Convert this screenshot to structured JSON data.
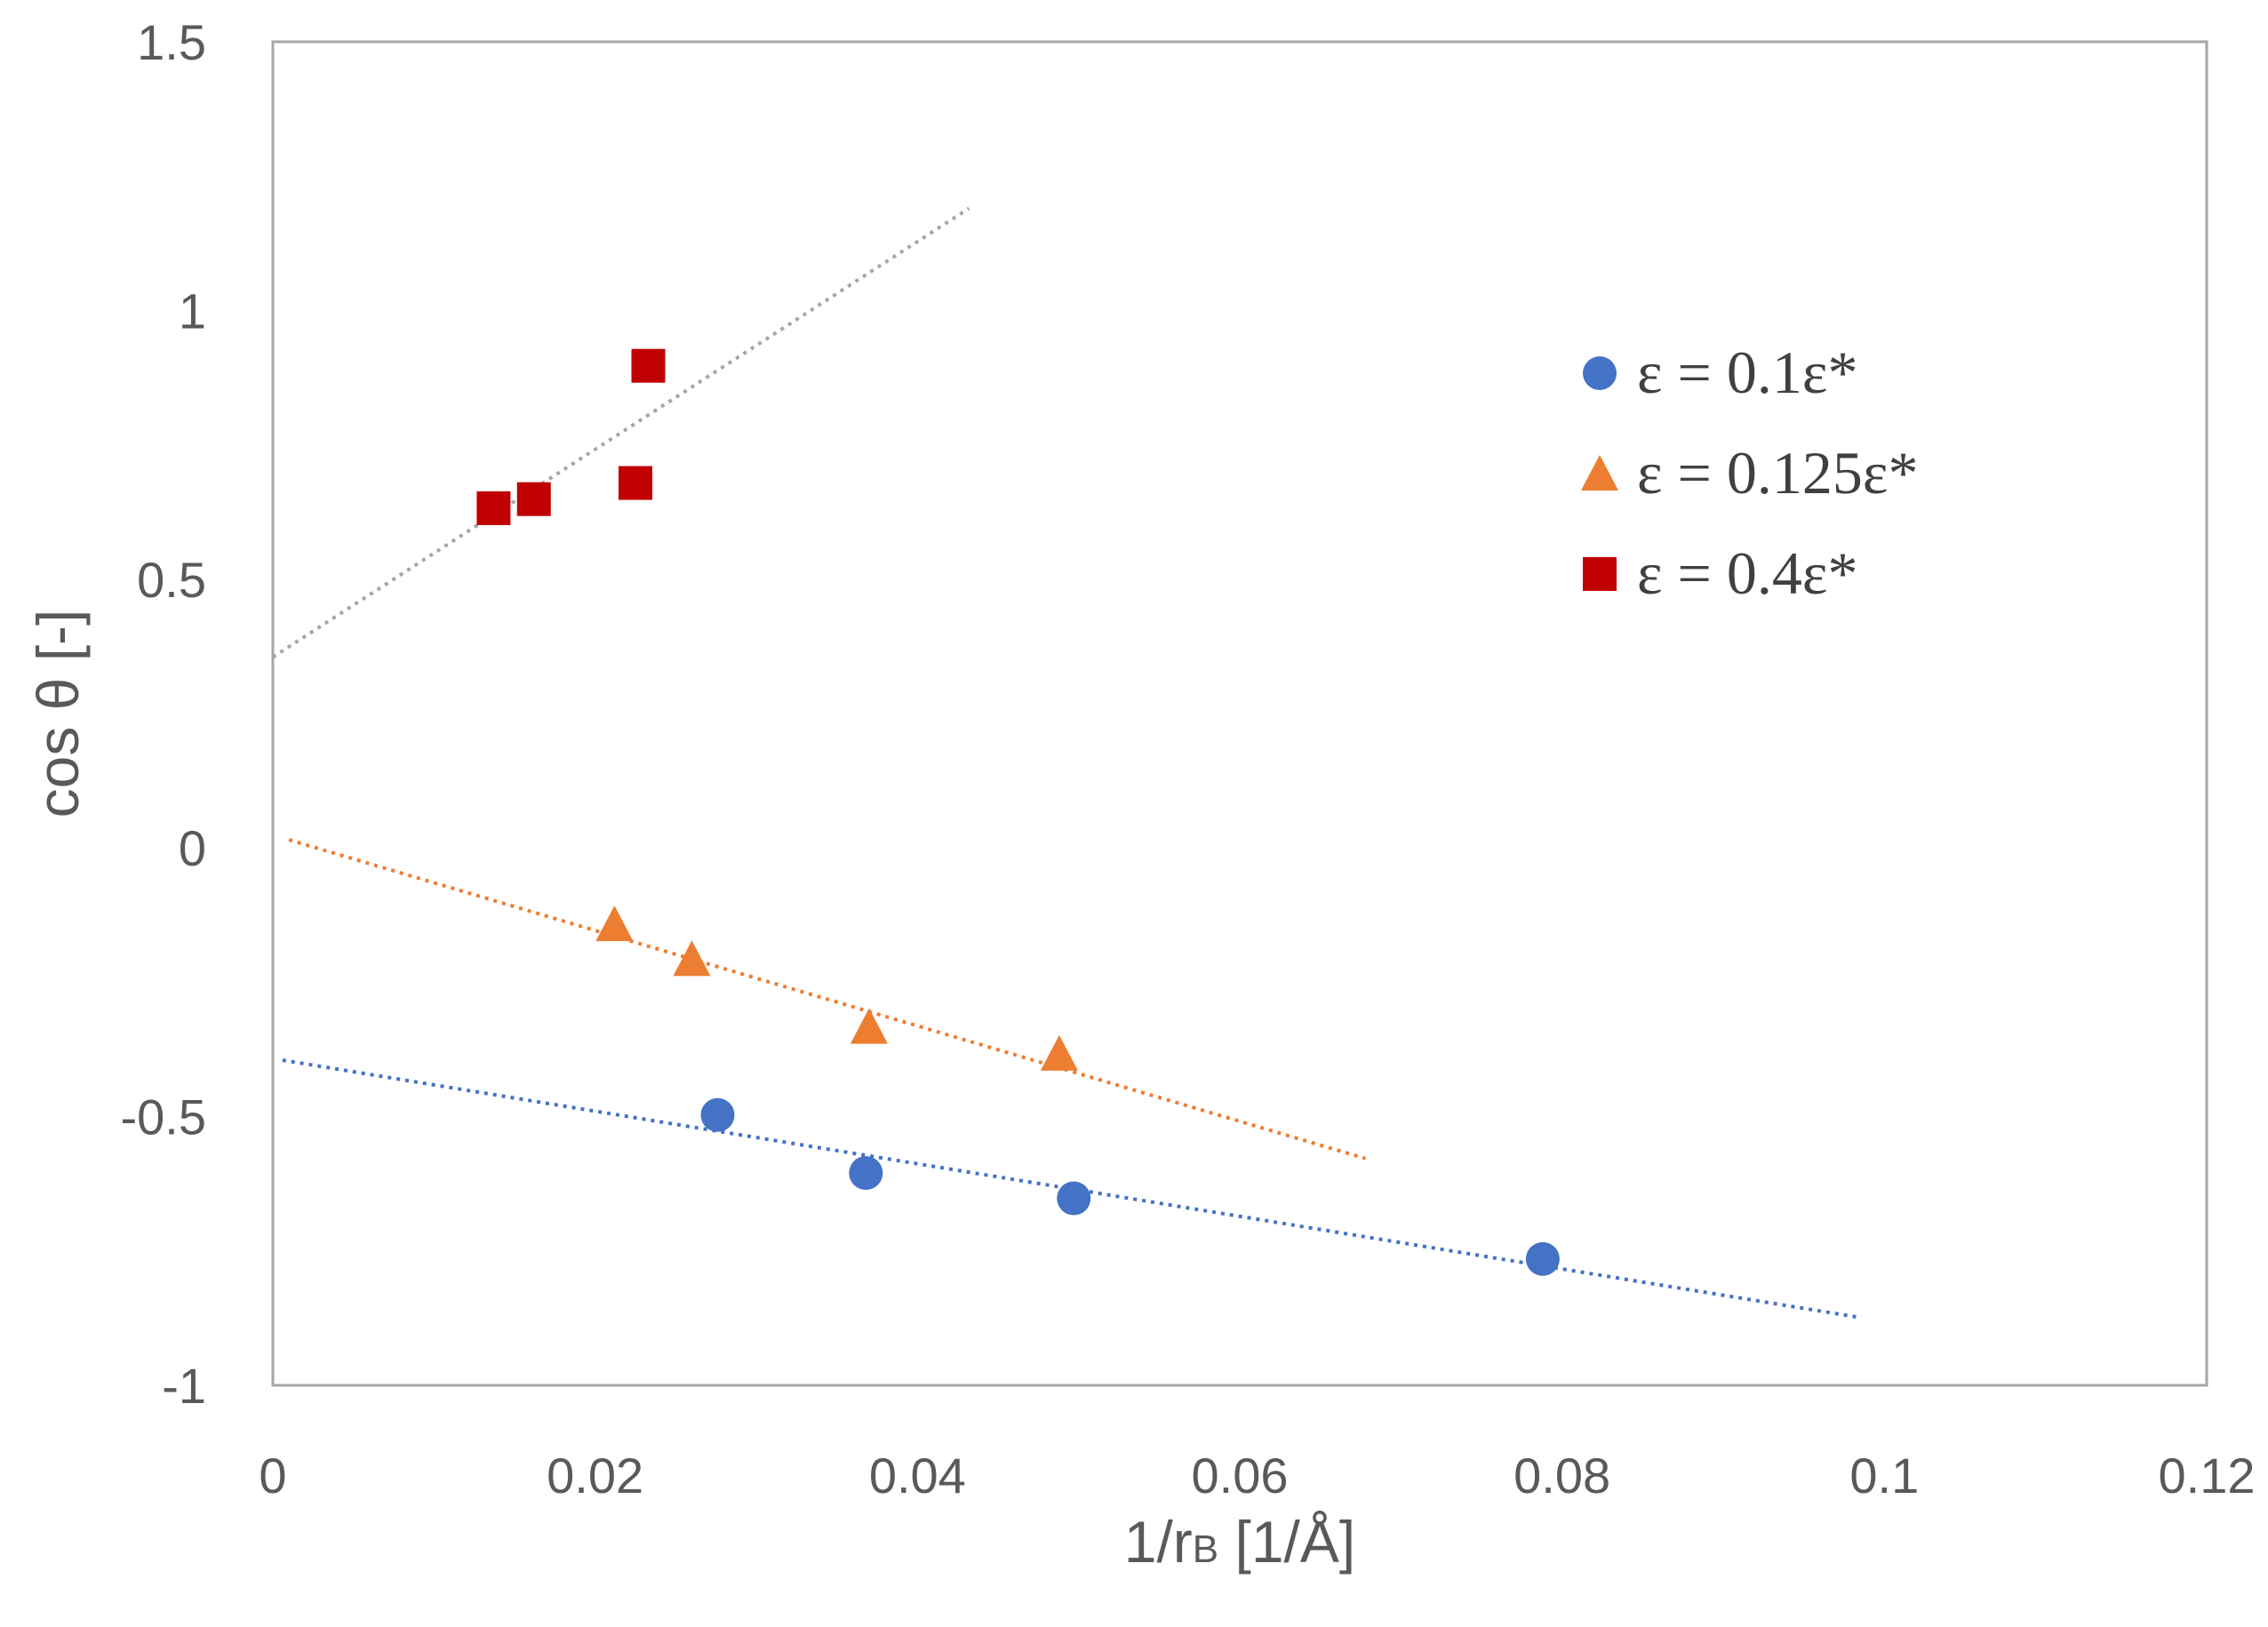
{
  "chart_data": {
    "type": "scatter",
    "title": "",
    "xlabel": "1/rB [1/Å]",
    "xlabel_main": "1/r",
    "xlabel_sub": "B",
    "xlabel_tail": " [1/Å]",
    "ylabel": "cos θ [-]",
    "xlim": [
      0,
      0.12
    ],
    "ylim": [
      -1,
      1.5
    ],
    "xticks": [
      0,
      0.02,
      0.04,
      0.06,
      0.08,
      0.1,
      0.12
    ],
    "xtick_labels": [
      "0",
      "0.02",
      "0.04",
      "0.06",
      "0.08",
      "0.1",
      "0.12"
    ],
    "yticks": [
      -1,
      -0.5,
      0,
      0.5,
      1,
      1.5
    ],
    "ytick_labels": [
      "-1",
      "-0.5",
      "0",
      "0.5",
      "1",
      "1.5"
    ],
    "grid": false,
    "legend_position": "right",
    "series": [
      {
        "name": "ε = 0.1ε*",
        "marker": "circle",
        "color": "#4472c4",
        "points": [
          [
            0.0276,
            -0.497
          ],
          [
            0.0368,
            -0.605
          ],
          [
            0.0497,
            -0.652
          ],
          [
            0.0788,
            -0.765
          ]
        ],
        "trendline": {
          "x": [
            0.0006,
            0.0983
          ],
          "y": [
            -0.395,
            -0.873
          ]
        }
      },
      {
        "name": "ε = 0.125ε*",
        "marker": "triangle",
        "color": "#ed7d31",
        "points": [
          [
            0.0212,
            -0.142
          ],
          [
            0.026,
            -0.207
          ],
          [
            0.037,
            -0.333
          ],
          [
            0.0488,
            -0.383
          ]
        ],
        "trendline": {
          "x": [
            0.001,
            0.0678
          ],
          "y": [
            0.015,
            -0.578
          ]
        }
      },
      {
        "name": "ε = 0.4ε*",
        "marker": "square",
        "color": "#c00000",
        "points": [
          [
            0.0137,
            0.632
          ],
          [
            0.0162,
            0.649
          ],
          [
            0.0225,
            0.679
          ],
          [
            0.0233,
            0.897
          ]
        ],
        "trendline": {
          "x": [
            0,
            0.0432
          ],
          "y": [
            0.355,
            1.19
          ],
          "color": "#a6a6a6"
        }
      }
    ]
  }
}
